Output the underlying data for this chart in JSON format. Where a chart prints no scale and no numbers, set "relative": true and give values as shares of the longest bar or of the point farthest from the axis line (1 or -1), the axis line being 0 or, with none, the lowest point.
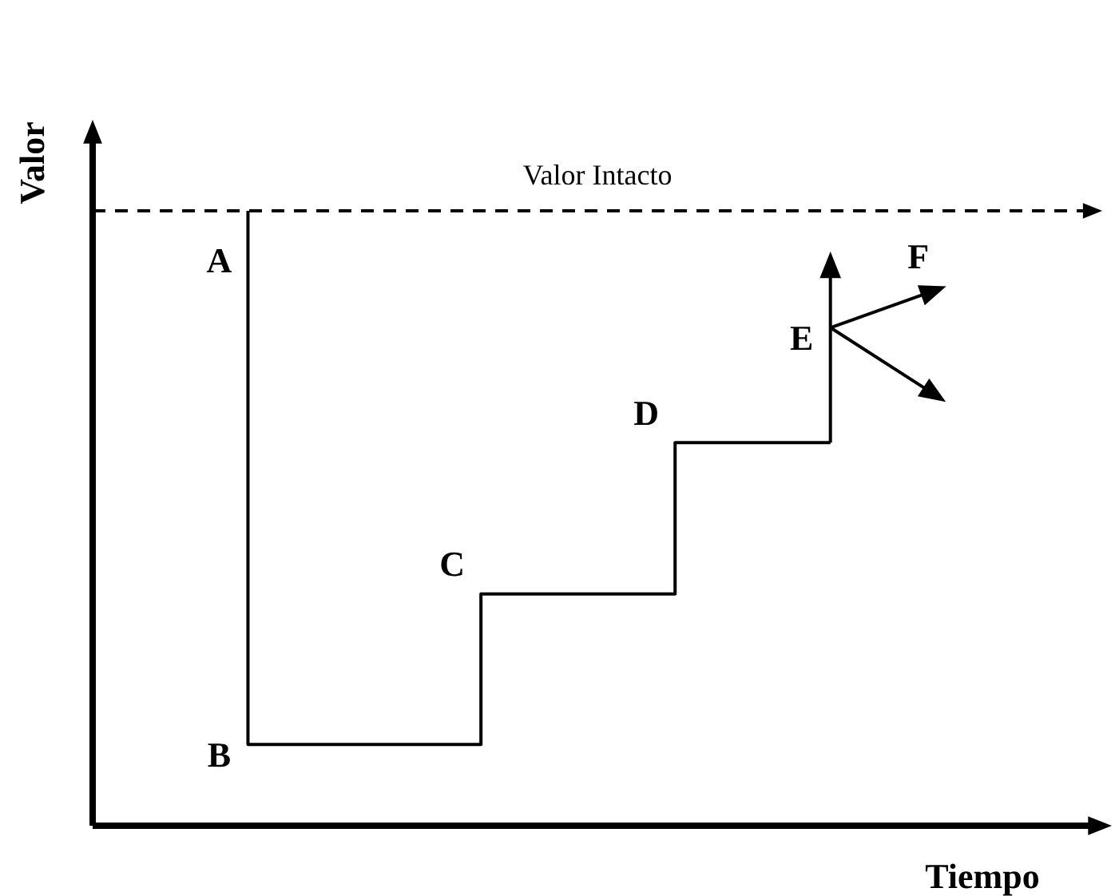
{
  "chart_data": {
    "type": "step",
    "relative": true,
    "xlabel": "Tiempo",
    "ylabel": "Valor",
    "legend": false,
    "marker": "none",
    "line_style": "solid",
    "categories": [
      null,
      null,
      null,
      null,
      null,
      null,
      null,
      null,
      null,
      null,
      null,
      null,
      null,
      null,
      null,
      null,
      null,
      null,
      null,
      null,
      null,
      null,
      null,
      null,
      null,
      null,
      null
    ],
    "series": [
      {
        "color": "#000000",
        "values": [
          null,
          null,
          null,
          null,
          1,
          null,
          null,
          null,
          null,
          null,
          0.132,
          null,
          null,
          null,
          null,
          0.377,
          null,
          null,
          null,
          0.623,
          null,
          null,
          null,
          null,
          null,
          null,
          null
        ]
      }
    ],
    "ref_lines": [
      {
        "axis": "y",
        "value": 1,
        "label": "Valor Intacto",
        "color": "#000000",
        "line_style": "dashed"
      }
    ],
    "annotations": [
      "A",
      "B",
      "C",
      "D",
      "E",
      "F"
    ]
  }
}
